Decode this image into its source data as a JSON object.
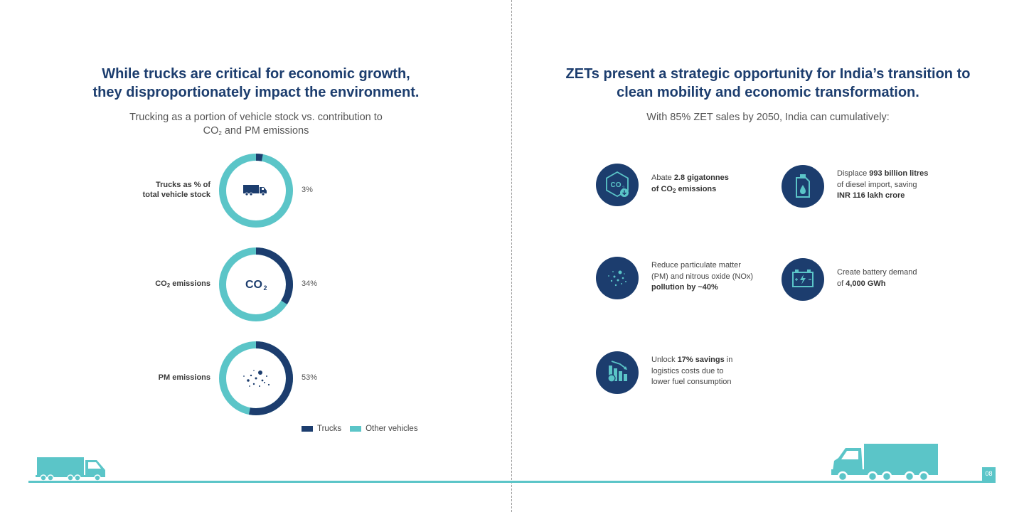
{
  "left": {
    "title_lines": [
      "While trucks are critical for economic growth,",
      "they disproportionately impact the environment."
    ],
    "subtitle_line1": "Trucking as a portion of vehicle stock vs. contribution to",
    "subtitle_line2_pre": "CO",
    "subtitle_line2_sub": "2",
    "subtitle_line2_post": " and PM emissions",
    "rows": [
      {
        "label_line1": "Trucks as % of",
        "label_line2": "total vehicle stock",
        "percent_text": "3%",
        "trucks_share": 3,
        "icon": "truck-icon"
      },
      {
        "label_pre": "CO",
        "label_sub": "2",
        "label_post": " emissions",
        "percent_text": "34%",
        "trucks_share": 34,
        "icon": "co2-icon",
        "center_text": "CO",
        "center_sub": "2"
      },
      {
        "label": "PM emissions",
        "percent_text": "53%",
        "trucks_share": 53,
        "icon": "particles-icon"
      }
    ],
    "legend": {
      "trucks": "Trucks",
      "other": "Other vehicles"
    },
    "colors": {
      "trucks": "#1c3d6e",
      "other": "#5bc5c8"
    }
  },
  "right": {
    "title_lines": [
      "ZETs present a strategic opportunity for India’s transition to",
      "clean mobility and economic transformation."
    ],
    "subtitle": "With 85% ZET sales by 2050, India can cumulatively:",
    "features": [
      {
        "icon": "co2-down-icon",
        "l1_pre": "Abate ",
        "l1_bold": "2.8 gigatonnes",
        "l2_bold_pre": "of CO",
        "l2_sub": "2",
        "l2_bold_post": " emissions"
      },
      {
        "icon": "fuel-can-icon",
        "l1_pre": "Displace ",
        "l1_bold": "993 billion litres",
        "l2": "of diesel import, saving",
        "l3_bold": "INR 116 lakh crore"
      },
      {
        "icon": "pollution-icon",
        "l1": "Reduce particulate matter",
        "l2": "(PM) and nitrous oxide (NOx)",
        "l3_bold": "pollution by ~40%"
      },
      {
        "icon": "battery-icon",
        "l1": "Create battery demand",
        "l2_pre": "of ",
        "l2_bold": "4,000 GWh"
      },
      {
        "icon": "savings-chart-icon",
        "l1_pre": "Unlock ",
        "l1_bold": "17% savings",
        "l1_post": " in",
        "l2": "logistics costs due to",
        "l3": "lower fuel consumption"
      }
    ]
  },
  "page_number": "08",
  "colors": {
    "navy": "#1c3d6e",
    "teal": "#5bc5c8",
    "heading": "#1c3d6e"
  }
}
